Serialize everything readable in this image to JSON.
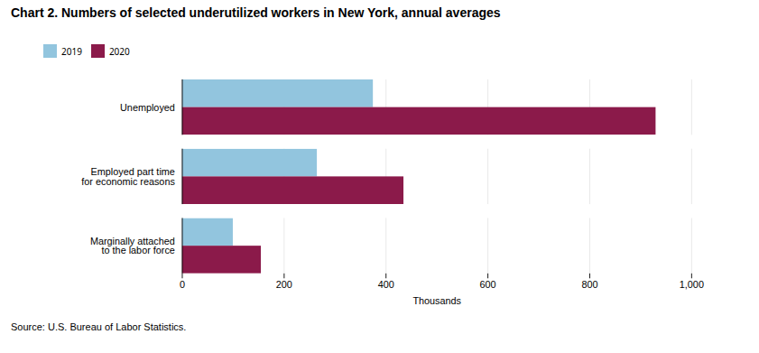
{
  "chart_data": {
    "type": "bar",
    "orientation": "horizontal",
    "title": "Chart 2. Numbers of selected underutilized workers in New York, annual averages",
    "categories": [
      "Unemployed",
      "Employed part time\nfor economic reasons",
      "Marginally attached\nto the labor force"
    ],
    "series": [
      {
        "name": "2019",
        "color": "#92C5DE",
        "values": [
          375,
          265,
          100
        ]
      },
      {
        "name": "2020",
        "color": "#8B1A4A",
        "values": [
          930,
          435,
          155
        ]
      }
    ],
    "xlabel": "Thousands",
    "xlim": [
      0,
      1000
    ],
    "xticks": [
      0,
      200,
      400,
      600,
      800,
      {
        "value": 1000,
        "label": "1,000"
      }
    ],
    "grid": true,
    "legend": "top",
    "source": "Source: U.S. Bureau of Labor Statistics."
  }
}
